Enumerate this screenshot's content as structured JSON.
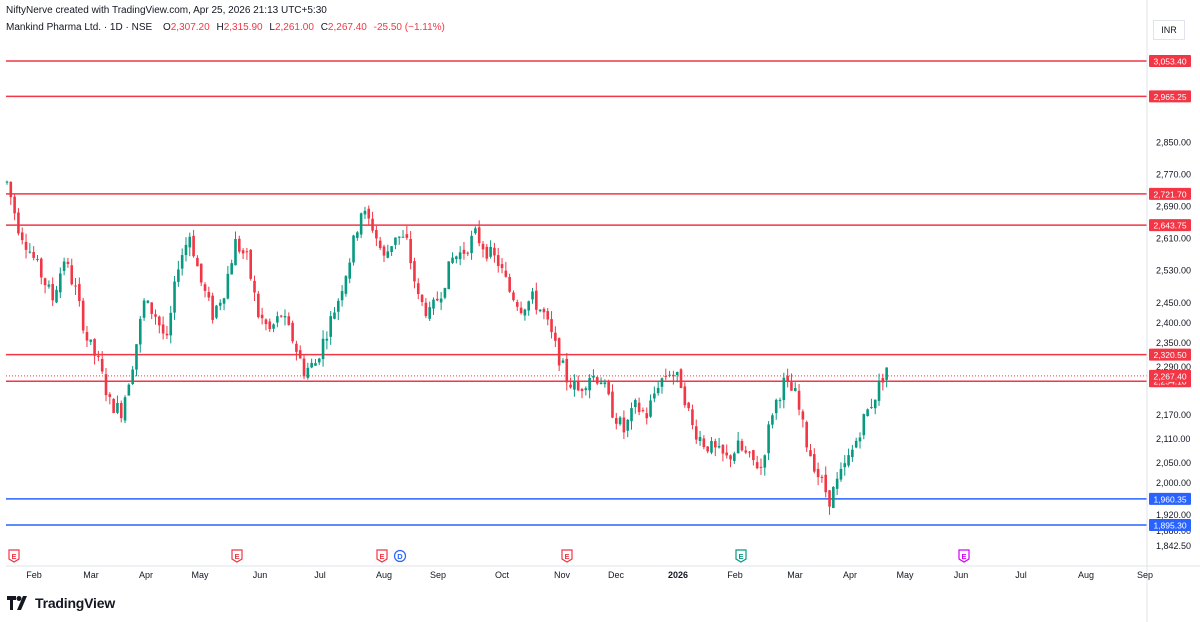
{
  "credit": "NiftyNerve created with TradingView.com, Apr 25, 2026 21:13 UTC+5:30",
  "legend": {
    "symbol": "Mankind Pharma Ltd. · 1D · NSE",
    "open_label": "O",
    "open": "2,307.20",
    "high_label": "H",
    "high": "2,315.90",
    "low_label": "L",
    "low": "2,261.00",
    "close_label": "C",
    "close": "2,267.40",
    "change": "-25.50 (−1.11%)"
  },
  "currency": "INR",
  "brand": {
    "name": "TradingView",
    "logo_icon": "tradingview-logo-icon"
  },
  "colors": {
    "up": "#089981",
    "down": "#f23645",
    "resistance": "#f23645",
    "support": "#2962ff",
    "grid": "#f0f3fa",
    "axis_text": "#131722",
    "tag_text": "#ffffff"
  },
  "chart_data": {
    "type": "candlestick",
    "y_range": [
      1820,
      3080
    ],
    "y_ticks": [
      "2,850.00",
      "2,770.00",
      "2,690.00",
      "2,610.00",
      "2,530.00",
      "2,450.00",
      "2,400.00",
      "2,350.00",
      "2,290.00",
      "2,170.00",
      "2,110.00",
      "2,050.00",
      "2,000.00",
      "1,920.00",
      "1,880.00",
      "1,842.50"
    ],
    "y_tick_values": [
      2850,
      2770,
      2690,
      2610,
      2530,
      2450,
      2400,
      2350,
      2290,
      2170,
      2110,
      2050,
      2000,
      1920,
      1880,
      1842.5
    ],
    "x_ticks": [
      "Feb",
      "Mar",
      "Apr",
      "May",
      "Jun",
      "Jul",
      "Aug",
      "Sep",
      "Oct",
      "Nov",
      "Dec",
      "2026",
      "Feb",
      "Mar",
      "Apr",
      "May",
      "Jun",
      "Jul",
      "Aug",
      "Sep"
    ],
    "horizontal_levels": [
      {
        "value": 3053.4,
        "label": "3,053.40",
        "kind": "resistance"
      },
      {
        "value": 2965.25,
        "label": "2,965.25",
        "kind": "resistance"
      },
      {
        "value": 2721.7,
        "label": "2,721.70",
        "kind": "resistance"
      },
      {
        "value": 2643.75,
        "label": "2,643.75",
        "kind": "resistance"
      },
      {
        "value": 2320.5,
        "label": "2,320.50",
        "kind": "resistance"
      },
      {
        "value": 2254.1,
        "label": "2,254.10",
        "kind": "resistance"
      },
      {
        "value": 1960.35,
        "label": "1,960.35",
        "kind": "support"
      },
      {
        "value": 1895.3,
        "label": "1,895.30",
        "kind": "support"
      }
    ],
    "last_price": {
      "value": 2267.4,
      "label": "2,267.40"
    },
    "events": [
      {
        "letter": "E",
        "x_index": 1,
        "color": "#f23645"
      },
      {
        "letter": "E",
        "x_index": 40,
        "color": "#f23645"
      },
      {
        "letter": "E",
        "x_index": 64,
        "color": "#f23645"
      },
      {
        "letter": "D",
        "x_index": 67,
        "color": "#2962ff"
      },
      {
        "letter": "E",
        "x_index": 95,
        "color": "#f23645"
      },
      {
        "letter": "E",
        "x_index": 123,
        "color": "#089981"
      },
      {
        "letter": "E",
        "x_index": 160,
        "color": "#d500f9"
      }
    ],
    "close_path": [
      [
        0,
        2750
      ],
      [
        3,
        2640
      ],
      [
        6,
        2580
      ],
      [
        9,
        2520
      ],
      [
        12,
        2460
      ],
      [
        15,
        2560
      ],
      [
        18,
        2480
      ],
      [
        21,
        2360
      ],
      [
        24,
        2300
      ],
      [
        27,
        2200
      ],
      [
        30,
        2180
      ],
      [
        33,
        2300
      ],
      [
        36,
        2450
      ],
      [
        39,
        2420
      ],
      [
        42,
        2350
      ],
      [
        45,
        2550
      ],
      [
        48,
        2620
      ],
      [
        51,
        2500
      ],
      [
        54,
        2420
      ],
      [
        57,
        2480
      ],
      [
        60,
        2600
      ],
      [
        63,
        2560
      ],
      [
        66,
        2420
      ],
      [
        69,
        2380
      ],
      [
        72,
        2420
      ],
      [
        75,
        2360
      ],
      [
        78,
        2280
      ],
      [
        81,
        2300
      ],
      [
        84,
        2380
      ],
      [
        87,
        2460
      ],
      [
        90,
        2560
      ],
      [
        93,
        2680
      ],
      [
        96,
        2640
      ],
      [
        99,
        2560
      ],
      [
        102,
        2620
      ],
      [
        105,
        2600
      ],
      [
        108,
        2460
      ],
      [
        111,
        2420
      ],
      [
        114,
        2480
      ],
      [
        117,
        2560
      ],
      [
        120,
        2580
      ],
      [
        123,
        2620
      ],
      [
        126,
        2580
      ],
      [
        129,
        2550
      ],
      [
        132,
        2480
      ],
      [
        135,
        2440
      ],
      [
        138,
        2460
      ],
      [
        141,
        2420
      ],
      [
        144,
        2340
      ],
      [
        147,
        2260
      ],
      [
        150,
        2230
      ],
      [
        153,
        2270
      ],
      [
        156,
        2260
      ],
      [
        159,
        2180
      ],
      [
        162,
        2130
      ],
      [
        165,
        2190
      ],
      [
        168,
        2170
      ],
      [
        171,
        2250
      ],
      [
        174,
        2280
      ],
      [
        177,
        2250
      ],
      [
        180,
        2140
      ],
      [
        183,
        2100
      ],
      [
        186,
        2080
      ],
      [
        189,
        2060
      ],
      [
        192,
        2090
      ],
      [
        195,
        2060
      ],
      [
        198,
        2040
      ],
      [
        201,
        2180
      ],
      [
        204,
        2250
      ],
      [
        207,
        2220
      ],
      [
        210,
        2100
      ],
      [
        213,
        2020
      ],
      [
        216,
        1960
      ],
      [
        219,
        2020
      ],
      [
        222,
        2080
      ],
      [
        225,
        2160
      ],
      [
        228,
        2220
      ],
      [
        231,
        2290
      ]
    ],
    "n_candles": 232
  }
}
